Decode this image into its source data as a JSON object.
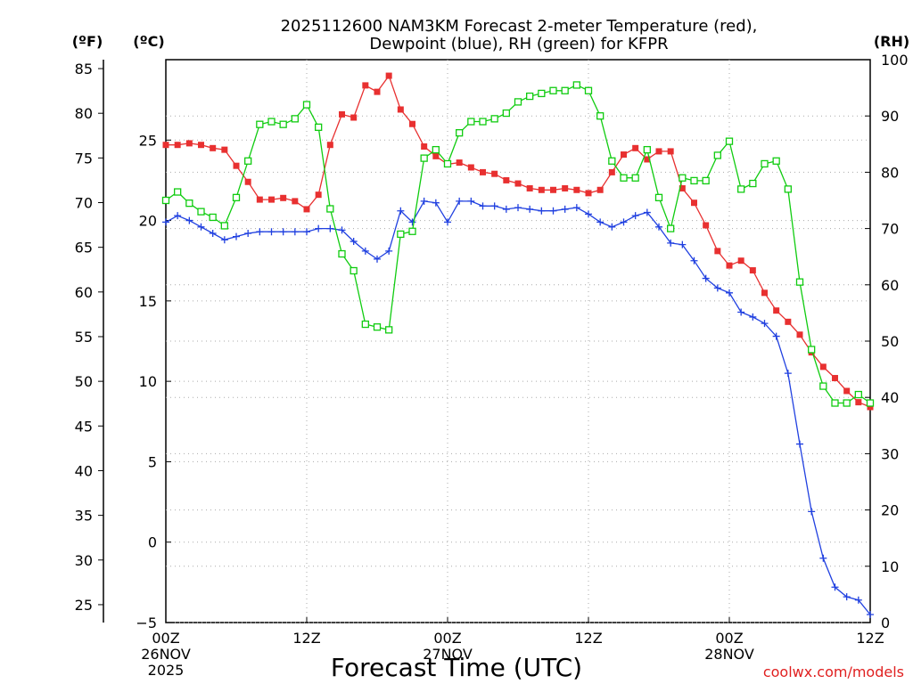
{
  "chart_data": {
    "type": "line",
    "title_line1": "2025112600 NAM3KM Forecast 2-meter Temperature (red),",
    "title_line2": "Dewpoint (blue), RH (green) for KFPR",
    "xlabel": "Forecast Time (UTC)",
    "credit": "coolwx.com/models",
    "units": {
      "left_outer": "(ºF)",
      "left_inner": "(ºC)",
      "right": "(RH)"
    },
    "x_range_hours": [
      0,
      60
    ],
    "ylim_c": [
      -5,
      30
    ],
    "ylim_rh": [
      0,
      100
    ],
    "ylim_f": [
      23,
      86
    ],
    "ticks_f": [
      25,
      30,
      35,
      40,
      45,
      50,
      55,
      60,
      65,
      70,
      75,
      80,
      85
    ],
    "ticks_c": [
      -5,
      0,
      5,
      10,
      15,
      20,
      25
    ],
    "ticks_rh": [
      0,
      10,
      20,
      30,
      40,
      50,
      60,
      70,
      80,
      90,
      100
    ],
    "x_ticks": [
      {
        "hour": 0,
        "lines": [
          "00Z",
          "26NOV",
          "2025"
        ]
      },
      {
        "hour": 12,
        "lines": [
          "12Z"
        ]
      },
      {
        "hour": 24,
        "lines": [
          "00Z",
          "27NOV"
        ]
      },
      {
        "hour": 36,
        "lines": [
          "12Z"
        ]
      },
      {
        "hour": 48,
        "lines": [
          "00Z",
          "28NOV"
        ]
      },
      {
        "hour": 60,
        "lines": [
          "12Z"
        ]
      }
    ],
    "series": [
      {
        "name": "Temperature",
        "unit": "C",
        "color": "#e83030",
        "marker": "filled-square",
        "hours": [
          0,
          1,
          2,
          3,
          4,
          5,
          6,
          7,
          8,
          9,
          10,
          11,
          12,
          13,
          14,
          15,
          16,
          17,
          18,
          19,
          20,
          21,
          22,
          23,
          24,
          25,
          26,
          27,
          28,
          29,
          30,
          31,
          32,
          33,
          34,
          35,
          36,
          37,
          38,
          39,
          40,
          41,
          42,
          43,
          44,
          45,
          46,
          47,
          48,
          49,
          50,
          51,
          52,
          53,
          54,
          55,
          56,
          57,
          58,
          59,
          60
        ],
        "values": [
          24.7,
          24.7,
          24.8,
          24.7,
          24.5,
          24.4,
          23.4,
          22.4,
          21.3,
          21.3,
          21.4,
          21.2,
          20.7,
          21.6,
          24.7,
          26.6,
          26.4,
          28.4,
          28.0,
          29.0,
          26.9,
          26.0,
          24.6,
          24.0,
          23.5,
          23.6,
          23.3,
          23.0,
          22.9,
          22.5,
          22.3,
          22.0,
          21.9,
          21.9,
          22.0,
          21.9,
          21.7,
          21.9,
          23.0,
          24.1,
          24.5,
          23.8,
          24.3,
          24.3,
          22.0,
          21.1,
          19.7,
          18.1,
          17.2,
          17.5,
          16.9,
          15.5,
          14.4,
          13.7,
          12.9,
          11.8,
          10.9,
          10.2,
          9.4,
          8.7,
          8.4
        ]
      },
      {
        "name": "Dewpoint",
        "unit": "C",
        "color": "#2040e0",
        "marker": "plus",
        "hours": [
          0,
          1,
          2,
          3,
          4,
          5,
          6,
          7,
          8,
          9,
          10,
          11,
          12,
          13,
          14,
          15,
          16,
          17,
          18,
          19,
          20,
          21,
          22,
          23,
          24,
          25,
          26,
          27,
          28,
          29,
          30,
          31,
          32,
          33,
          34,
          35,
          36,
          37,
          38,
          39,
          40,
          41,
          42,
          43,
          44,
          45,
          46,
          47,
          48,
          49,
          50,
          51,
          52,
          53,
          54,
          55,
          56,
          57,
          58,
          59,
          60
        ],
        "values": [
          19.9,
          20.3,
          20.0,
          19.6,
          19.2,
          18.8,
          19.0,
          19.2,
          19.3,
          19.3,
          19.3,
          19.3,
          19.3,
          19.5,
          19.5,
          19.4,
          18.7,
          18.1,
          17.6,
          18.1,
          20.6,
          19.9,
          21.2,
          21.1,
          19.9,
          21.2,
          21.2,
          20.9,
          20.9,
          20.7,
          20.8,
          20.7,
          20.6,
          20.6,
          20.7,
          20.8,
          20.4,
          19.9,
          19.6,
          19.9,
          20.3,
          20.5,
          19.6,
          18.6,
          18.5,
          17.5,
          16.4,
          15.8,
          15.5,
          14.3,
          14.0,
          13.6,
          12.8,
          10.5,
          6.1,
          1.9,
          -1.0,
          -2.8,
          -3.4,
          -3.6,
          -4.5
        ]
      },
      {
        "name": "RH",
        "unit": "%",
        "color": "#10cc10",
        "marker": "open-square",
        "hours": [
          0,
          1,
          2,
          3,
          4,
          5,
          6,
          7,
          8,
          9,
          10,
          11,
          12,
          13,
          14,
          15,
          16,
          17,
          18,
          19,
          20,
          21,
          22,
          23,
          24,
          25,
          26,
          27,
          28,
          29,
          30,
          31,
          32,
          33,
          34,
          35,
          36,
          37,
          38,
          39,
          40,
          41,
          42,
          43,
          44,
          45,
          46,
          47,
          48,
          49,
          50,
          51,
          52,
          53,
          54,
          55,
          56,
          57,
          58,
          59,
          60
        ],
        "values": [
          75,
          76.5,
          74.5,
          73,
          72,
          70.5,
          75.5,
          82,
          88.5,
          89,
          88.5,
          89.5,
          92,
          88,
          73.5,
          65.5,
          62.5,
          53,
          52.5,
          52,
          69,
          69.5,
          82.5,
          84,
          81.5,
          87,
          89,
          89,
          89.5,
          90.5,
          92.5,
          93.5,
          94,
          94.5,
          94.5,
          95.5,
          94.5,
          90,
          82,
          79,
          79,
          84,
          75.5,
          70,
          79,
          78.5,
          78.5,
          83,
          85.5,
          77,
          78,
          81.5,
          82,
          77,
          60.5,
          48.5,
          42,
          39,
          39,
          40.5,
          39
        ]
      }
    ]
  }
}
